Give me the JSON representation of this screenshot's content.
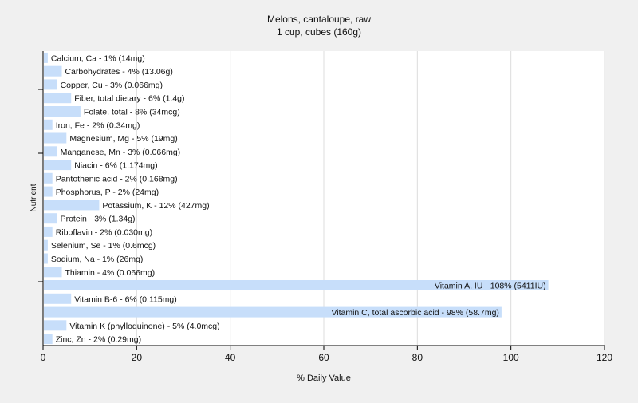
{
  "chart_data": {
    "type": "bar",
    "orientation": "horizontal",
    "title": "Melons, cantaloupe, raw",
    "subtitle": "1 cup, cubes (160g)",
    "xlabel": "% Daily Value",
    "ylabel": "Nutrient",
    "xlim": [
      0,
      120
    ],
    "xticks": [
      0,
      20,
      40,
      60,
      80,
      100,
      120
    ],
    "grid": true,
    "legend": "none",
    "bar_color": "#c7defa",
    "categories": [
      "Calcium, Ca",
      "Carbohydrates",
      "Copper, Cu",
      "Fiber, total dietary",
      "Folate, total",
      "Iron, Fe",
      "Magnesium, Mg",
      "Manganese, Mn",
      "Niacin",
      "Pantothenic acid",
      "Phosphorus, P",
      "Potassium, K",
      "Protein",
      "Riboflavin",
      "Selenium, Se",
      "Sodium, Na",
      "Thiamin",
      "Vitamin A, IU",
      "Vitamin B-6",
      "Vitamin C, total ascorbic acid",
      "Vitamin K (phylloquinone)",
      "Zinc, Zn"
    ],
    "values": [
      1,
      4,
      3,
      6,
      8,
      2,
      5,
      3,
      6,
      2,
      2,
      12,
      3,
      2,
      1,
      1,
      4,
      108,
      6,
      98,
      5,
      2
    ],
    "labels": [
      "Calcium, Ca - 1% (14mg)",
      "Carbohydrates - 4% (13.06g)",
      "Copper, Cu - 3% (0.066mg)",
      "Fiber, total dietary - 6% (1.4g)",
      "Folate, total - 8% (34mcg)",
      "Iron, Fe - 2% (0.34mg)",
      "Magnesium, Mg - 5% (19mg)",
      "Manganese, Mn - 3% (0.066mg)",
      "Niacin - 6% (1.174mg)",
      "Pantothenic acid - 2% (0.168mg)",
      "Phosphorus, P - 2% (24mg)",
      "Potassium, K - 12% (427mg)",
      "Protein - 3% (1.34g)",
      "Riboflavin - 2% (0.030mg)",
      "Selenium, Se - 1% (0.6mcg)",
      "Sodium, Na - 1% (26mg)",
      "Thiamin - 4% (0.066mg)",
      "Vitamin A, IU - 108% (5411IU)",
      "Vitamin B-6 - 6% (0.115mg)",
      "Vitamin C, total ascorbic acid - 98% (58.7mg)",
      "Vitamin K (phylloquinone) - 5% (4.0mcg)",
      "Zinc, Zn - 2% (0.29mg)"
    ]
  }
}
